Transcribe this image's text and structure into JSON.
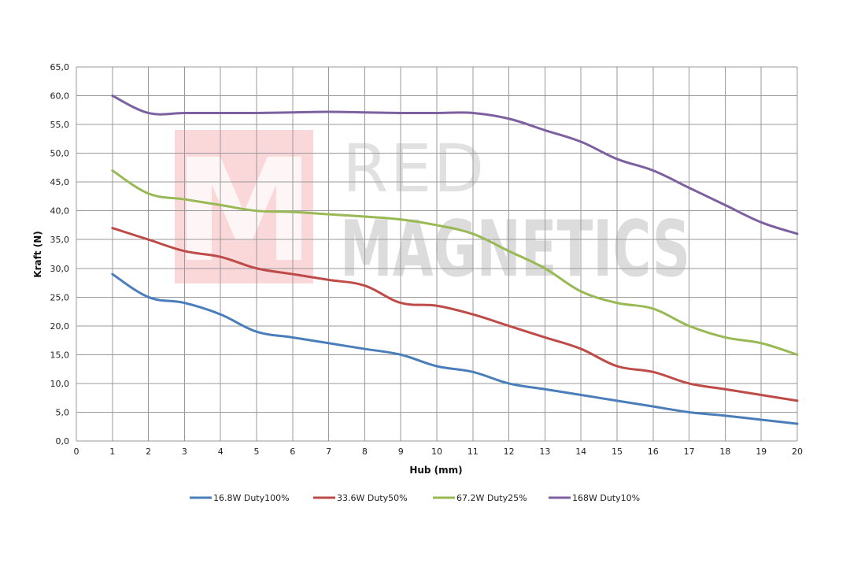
{
  "chart_data": {
    "type": "line",
    "xlabel": "Hub (mm)",
    "ylabel": "Kraft (N)",
    "xlim": [
      0,
      20
    ],
    "ylim": [
      0,
      65
    ],
    "x_ticks": [
      "0",
      "1",
      "2",
      "3",
      "4",
      "5",
      "6",
      "7",
      "8",
      "9",
      "10",
      "11",
      "12",
      "13",
      "14",
      "15",
      "16",
      "17",
      "18",
      "19",
      "20"
    ],
    "y_ticks": [
      "0,0",
      "5,0",
      "10,0",
      "15,0",
      "20,0",
      "25,0",
      "30,0",
      "35,0",
      "40,0",
      "45,0",
      "50,0",
      "55,0",
      "60,0",
      "65,0"
    ],
    "grid": true,
    "legend_position": "bottom",
    "x": [
      1,
      2,
      3,
      4,
      5,
      6,
      7,
      8,
      9,
      10,
      11,
      12,
      13,
      14,
      15,
      16,
      17,
      18,
      19,
      20
    ],
    "series": [
      {
        "name": "16.8W Duty100%",
        "color": "#4a7ebb",
        "values": [
          29,
          25,
          24,
          22,
          19,
          18,
          17,
          16,
          15,
          13,
          12,
          10,
          9,
          8,
          7,
          6,
          5,
          4.4,
          3.7,
          3
        ]
      },
      {
        "name": "33.6W Duty50%",
        "color": "#be4b48",
        "values": [
          37,
          35,
          33,
          32,
          30,
          29,
          28,
          27,
          24,
          23.5,
          22,
          20,
          18,
          16,
          13,
          12,
          10,
          9,
          8,
          7
        ]
      },
      {
        "name": "67.2W Duty25%",
        "color": "#98b954",
        "values": [
          47,
          43,
          42,
          41,
          40,
          39.8,
          39.4,
          39,
          38.5,
          37.5,
          36,
          33,
          30,
          26,
          24,
          23,
          20,
          18,
          17,
          15
        ]
      },
      {
        "name": "168W Duty10%",
        "color": "#7d60a0",
        "values": [
          60,
          57,
          57,
          57,
          57,
          57.1,
          57.2,
          57.1,
          57,
          57,
          57,
          56,
          54,
          52,
          49,
          47,
          44,
          41,
          38,
          36
        ]
      }
    ]
  },
  "watermark": {
    "line1": "RED",
    "line2": "MAGNETICS",
    "logo_letter": "M"
  }
}
